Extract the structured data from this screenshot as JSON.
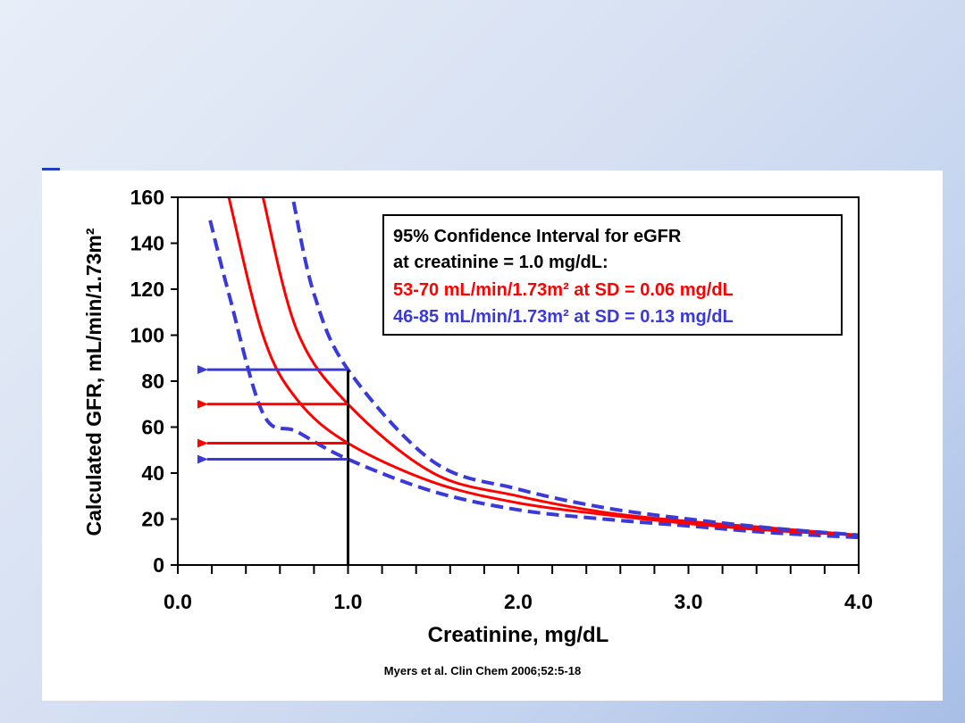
{
  "chart_data": {
    "type": "line",
    "xlabel": "Creatinine, mg/dL",
    "ylabel": "Calculated GFR, mL/min/1.73m²",
    "xlim": [
      0,
      4
    ],
    "ylim": [
      0,
      160
    ],
    "x_ticks": [
      "0.0",
      "1.0",
      "2.0",
      "3.0",
      "4.0"
    ],
    "y_ticks": [
      "0",
      "20",
      "40",
      "60",
      "80",
      "100",
      "120",
      "140",
      "160"
    ],
    "grid": false,
    "legend_position": "top-right",
    "legend": {
      "title_line1": "95% Confidence Interval for eGFR",
      "title_line2": "at creatinine = 1.0 mg/dL:",
      "red_line": "53-70 mL/min/1.73m² at SD = 0.06 mg/dL",
      "blue_line": "46-85 mL/min/1.73m² at SD = 0.13 mg/dL"
    },
    "series": [
      {
        "style": "blue-dashed",
        "color": "#3a3ad8",
        "x": [
          0.19,
          0.3,
          0.5,
          0.7,
          1.0,
          1.5,
          2.0,
          2.5,
          3.0,
          3.5,
          4.0
        ],
        "values": [
          150,
          118,
          66,
          58,
          46,
          32,
          24,
          20,
          17,
          14,
          12
        ]
      },
      {
        "style": "red-solid",
        "color": "#ff0000",
        "x": [
          0.3,
          0.5,
          0.7,
          1.0,
          1.5,
          2.0,
          2.5,
          3.0,
          3.5,
          4.0
        ],
        "values": [
          160,
          100,
          72,
          53,
          36,
          27,
          22,
          18,
          15,
          13
        ]
      },
      {
        "style": "red-solid",
        "color": "#ff0000",
        "x": [
          0.5,
          0.7,
          1.0,
          1.5,
          2.0,
          2.5,
          3.0,
          3.5,
          4.0
        ],
        "values": [
          160,
          102,
          70,
          40,
          30,
          23,
          19,
          16,
          13
        ]
      },
      {
        "style": "blue-dashed",
        "color": "#3a3ad8",
        "x": [
          0.68,
          0.8,
          1.0,
          1.5,
          2.0,
          2.5,
          3.0,
          3.5,
          4.0
        ],
        "values": [
          158,
          118,
          85,
          45,
          33,
          25,
          20,
          16,
          13
        ]
      }
    ],
    "reference_line": {
      "x": 1.0,
      "from": 0,
      "to": 85
    },
    "arrows": [
      {
        "color": "#3a3ad8",
        "y": 85,
        "from_x": 1.0,
        "to_x": 0.12
      },
      {
        "color": "#ff0000",
        "y": 70,
        "from_x": 1.0,
        "to_x": 0.12
      },
      {
        "color": "#ff0000",
        "y": 53,
        "from_x": 1.0,
        "to_x": 0.12
      },
      {
        "color": "#3a3ad8",
        "y": 46,
        "from_x": 1.0,
        "to_x": 0.12
      }
    ]
  },
  "citation": "Myers et al. Clin Chem 2006;52:5-18",
  "colors": {
    "red": "#ff0000",
    "blue": "#3a3ad8",
    "accent": "#1f3fbf"
  }
}
